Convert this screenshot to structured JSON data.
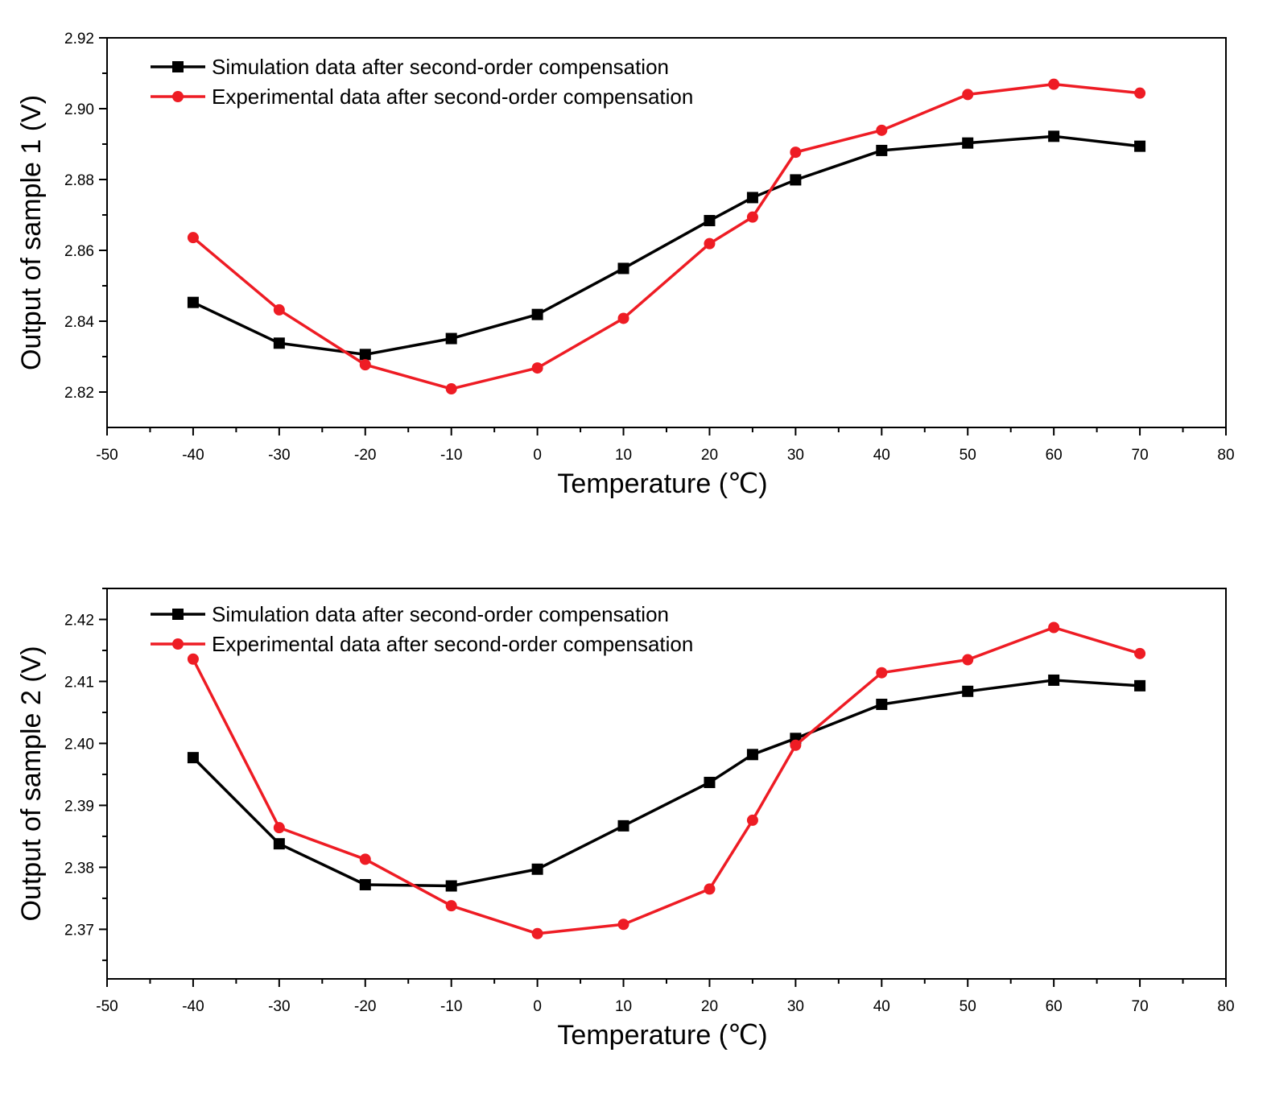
{
  "chart_data": [
    {
      "type": "line",
      "xlabel": "Temperature (℃)",
      "ylabel": "Output of sample 1 (V)",
      "xlim": [
        -50,
        80
      ],
      "ylim": [
        2.81,
        2.92
      ],
      "x_ticks": [
        -50,
        -40,
        -30,
        -20,
        -10,
        0,
        10,
        20,
        30,
        40,
        50,
        60,
        70,
        80
      ],
      "y_ticks": [
        2.82,
        2.84,
        2.86,
        2.88,
        2.9,
        2.92
      ],
      "y_tick_labels": [
        "2.82",
        "2.84",
        "2.86",
        "2.88",
        "2.90",
        "2.92"
      ],
      "legend_position": "top-left",
      "x": [
        -40,
        -30,
        -20,
        -10,
        0,
        10,
        20,
        25,
        30,
        40,
        50,
        60,
        70
      ],
      "series": [
        {
          "name": "Simulation data after second-order compensation",
          "color": "#000000",
          "marker": "square",
          "values": [
            2.8453,
            2.8338,
            2.8306,
            2.8351,
            2.8419,
            2.8549,
            2.8684,
            2.8749,
            2.8799,
            2.8882,
            2.8903,
            2.8922,
            2.8894
          ]
        },
        {
          "name": "Experimental data after second-order compensation",
          "color": "#ee1c24",
          "marker": "circle",
          "values": [
            2.8636,
            2.8432,
            2.8277,
            2.8209,
            2.8268,
            2.8408,
            2.8619,
            2.8694,
            2.8877,
            2.8939,
            2.904,
            2.9069,
            2.9044
          ]
        }
      ]
    },
    {
      "type": "line",
      "xlabel": "Temperature (℃)",
      "ylabel": "Output of sample 2 (V)",
      "xlim": [
        -50,
        80
      ],
      "ylim": [
        2.362,
        2.425
      ],
      "x_ticks": [
        -50,
        -40,
        -30,
        -20,
        -10,
        0,
        10,
        20,
        30,
        40,
        50,
        60,
        70,
        80
      ],
      "y_ticks": [
        2.37,
        2.38,
        2.39,
        2.4,
        2.41,
        2.42
      ],
      "y_tick_labels": [
        "2.37",
        "2.38",
        "2.39",
        "2.40",
        "2.41",
        "2.42"
      ],
      "legend_position": "top-left",
      "x": [
        -40,
        -30,
        -20,
        -10,
        0,
        10,
        20,
        25,
        30,
        40,
        50,
        60,
        70
      ],
      "series": [
        {
          "name": "Simulation data after second-order compensation",
          "color": "#000000",
          "marker": "square",
          "values": [
            2.3977,
            2.3838,
            2.3772,
            2.377,
            2.3797,
            2.3867,
            2.3937,
            2.3982,
            2.4008,
            2.4063,
            2.4084,
            2.4102,
            2.4093
          ]
        },
        {
          "name": "Experimental data after second-order compensation",
          "color": "#ee1c24",
          "marker": "circle",
          "values": [
            2.4136,
            2.3864,
            2.3813,
            2.3738,
            2.3693,
            2.3708,
            2.3765,
            2.3876,
            2.3997,
            2.4114,
            2.4135,
            2.4187,
            2.4145
          ]
        }
      ]
    }
  ]
}
